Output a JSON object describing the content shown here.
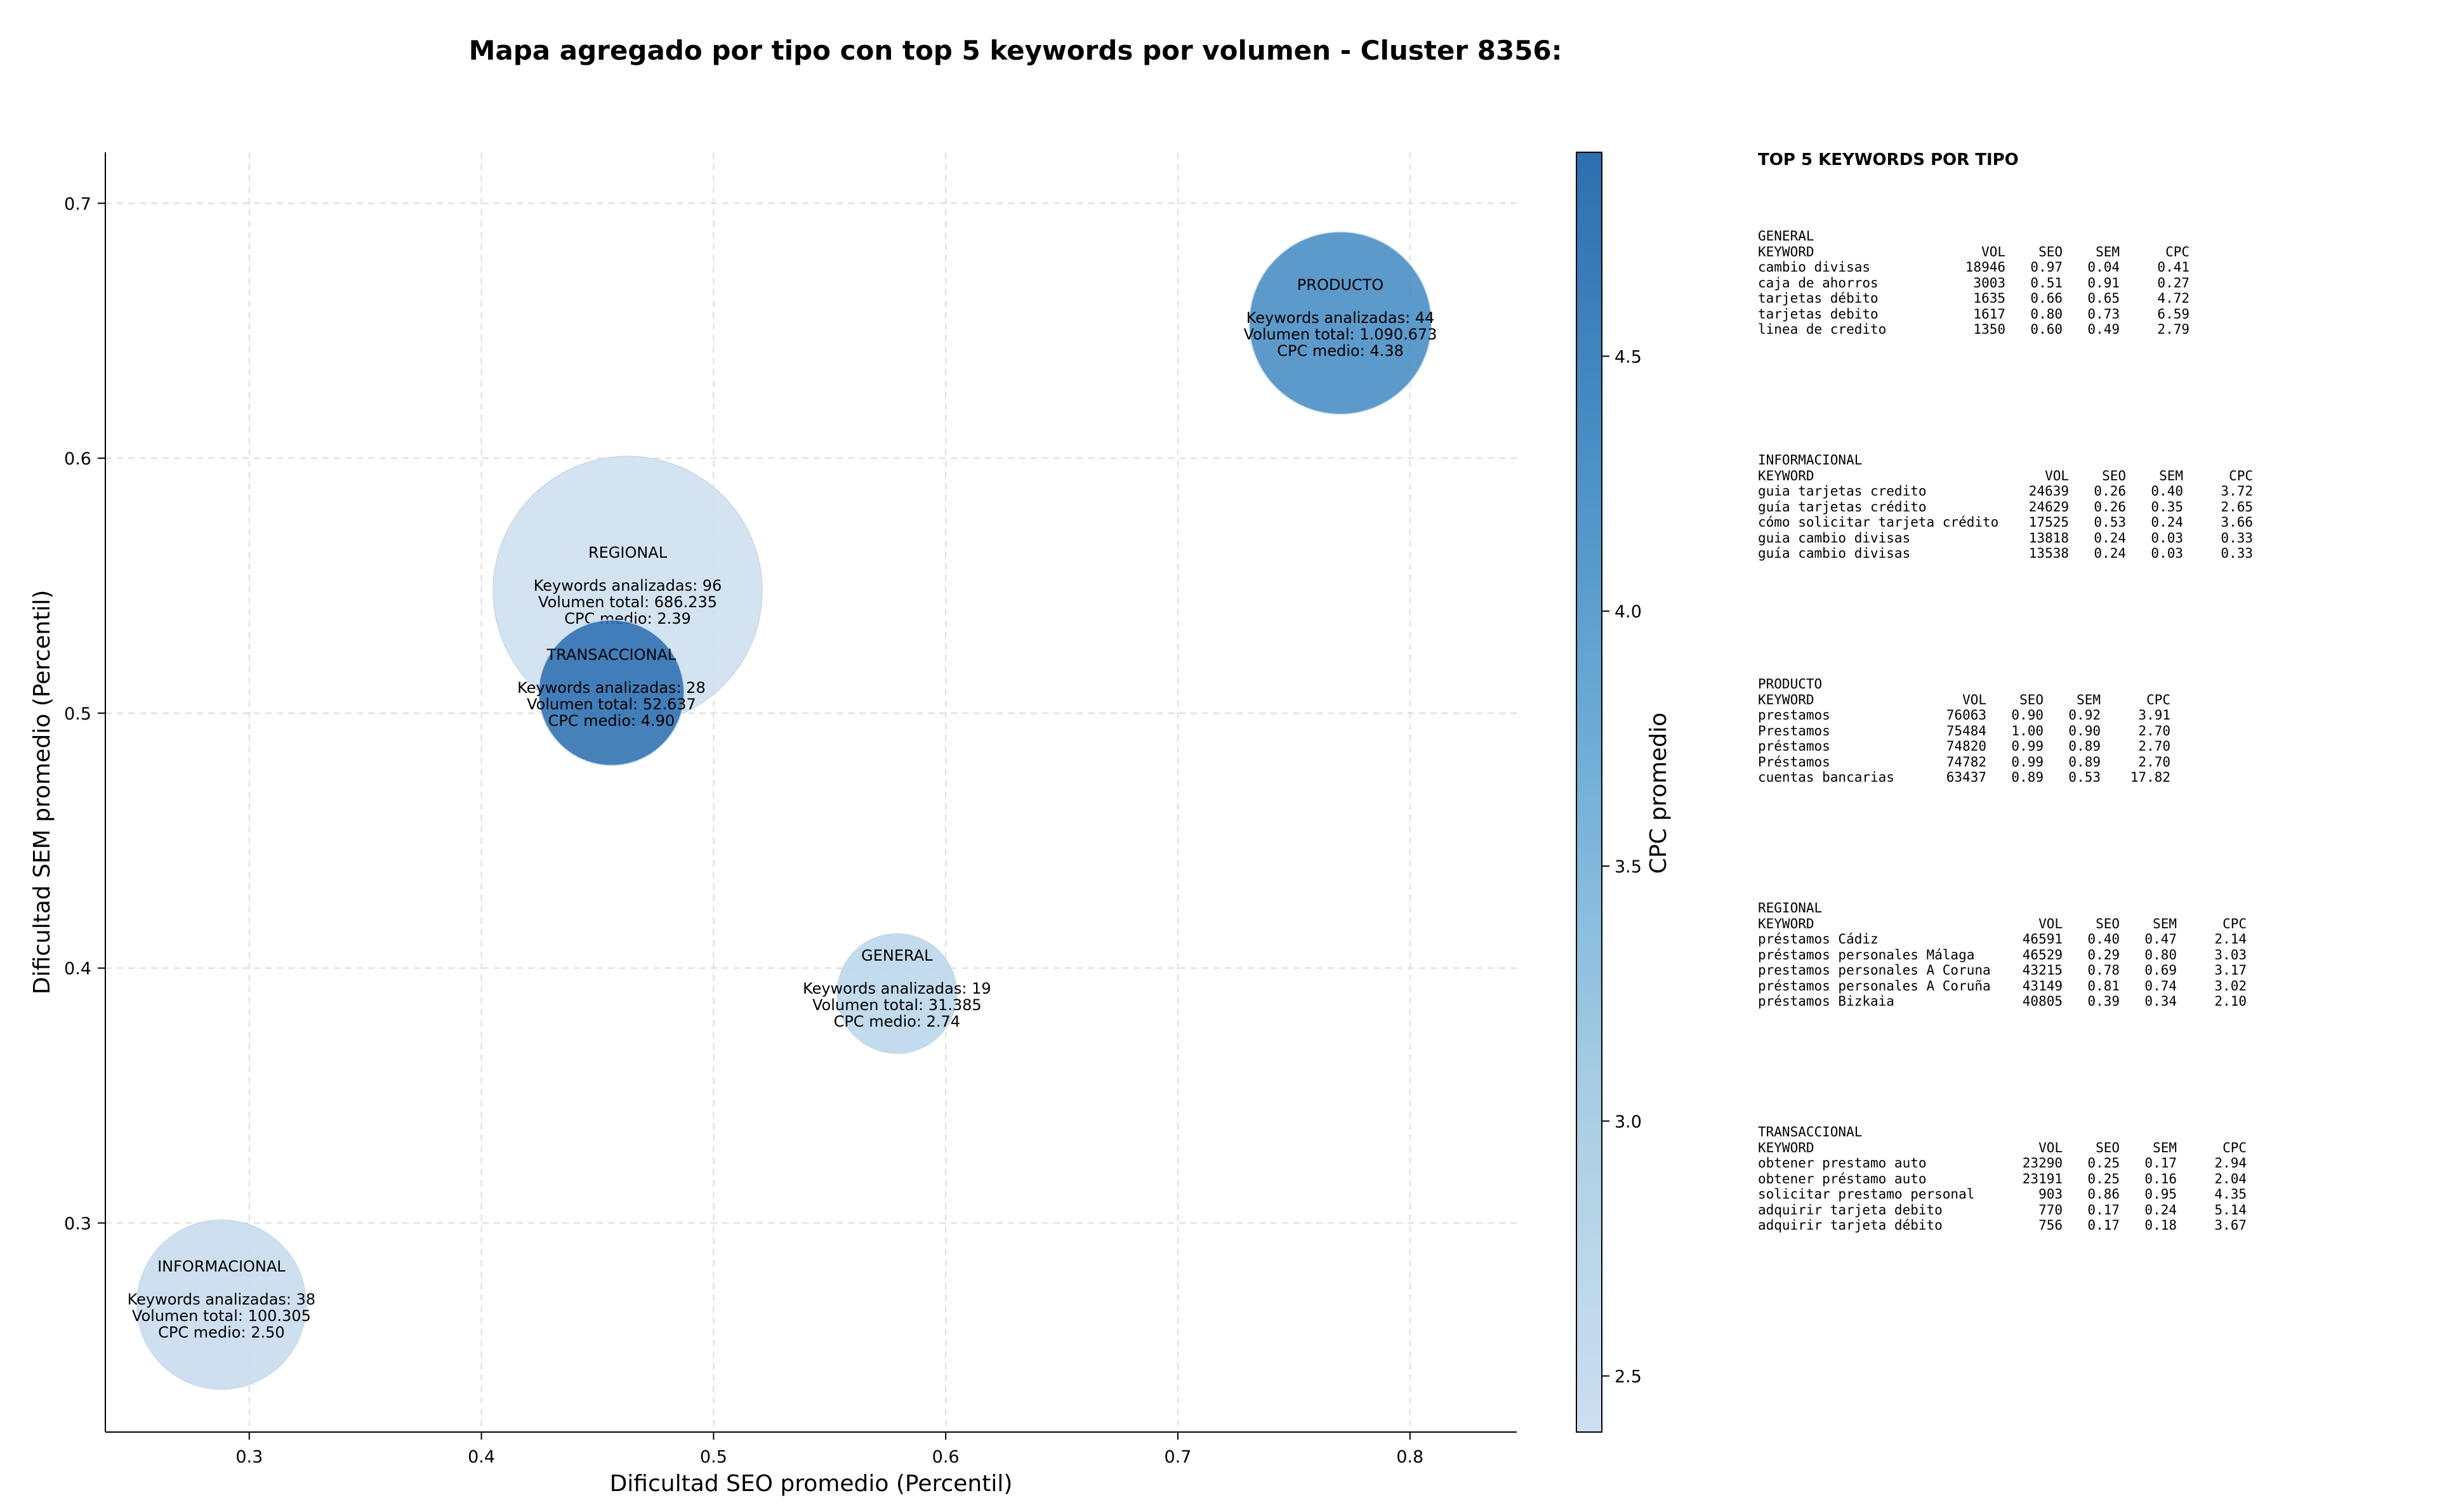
{
  "chart_data": {
    "type": "scatter",
    "title": "Mapa agregado por tipo con top 5 keywords por volumen - Cluster 8356:",
    "xlabel": "Dificultad SEO promedio (Percentil)",
    "ylabel": "Dificultad SEM promedio (Percentil)",
    "xlim": [
      0.238,
      0.846
    ],
    "ylim": [
      0.218,
      0.72
    ],
    "xticks": [
      "0.3",
      "0.4",
      "0.5",
      "0.6",
      "0.7",
      "0.8"
    ],
    "yticks": [
      "0.3",
      "0.4",
      "0.5",
      "0.6",
      "0.7"
    ],
    "grid": true,
    "colorbar": {
      "label": "CPC promedio",
      "min": 2.39,
      "max": 4.9,
      "ticks": [
        "2.5",
        "3.0",
        "3.5",
        "4.0",
        "4.5"
      ]
    },
    "points": [
      {
        "name": "REGIONAL",
        "x": 0.463,
        "y": 0.548,
        "cpc": 2.39,
        "keywords": "Keywords analizadas: 96",
        "volume": "Volumen total: 686.235",
        "cpc_label": "CPC medio: 2.39"
      },
      {
        "name": "PRODUCTO",
        "x": 0.77,
        "y": 0.653,
        "cpc": 4.38,
        "keywords": "Keywords analizadas: 44",
        "volume": "Volumen total: 1.090.673",
        "cpc_label": "CPC medio: 4.38"
      },
      {
        "name": "GENERAL",
        "x": 0.579,
        "y": 0.39,
        "cpc": 2.74,
        "keywords": "Keywords analizadas: 19",
        "volume": "Volumen total: 31.385",
        "cpc_label": "CPC medio: 2.74"
      },
      {
        "name": "INFORMACIONAL",
        "x": 0.288,
        "y": 0.268,
        "cpc": 2.5,
        "keywords": "Keywords analizadas: 38",
        "volume": "Volumen total: 100.305",
        "cpc_label": "CPC medio: 2.50"
      },
      {
        "name": "TRANSACCIONAL",
        "x": 0.456,
        "y": 0.508,
        "cpc": 4.9,
        "keywords": "Keywords analizadas: 28",
        "volume": "Volumen total: 52.637",
        "cpc_label": "CPC medio: 4.90"
      }
    ]
  },
  "panel": {
    "title": "TOP 5 KEYWORDS POR TIPO",
    "headers": [
      "KEYWORD",
      "VOL",
      "SEO",
      "SEM",
      "CPC"
    ],
    "groups": [
      {
        "name": "GENERAL",
        "rows": [
          [
            "cambio divisas",
            "18946",
            "0.97",
            "0.04",
            "0.41"
          ],
          [
            "caja de ahorros",
            "3003",
            "0.51",
            "0.91",
            "0.27"
          ],
          [
            "tarjetas débito",
            "1635",
            "0.66",
            "0.65",
            "4.72"
          ],
          [
            "tarjetas debito",
            "1617",
            "0.80",
            "0.73",
            "6.59"
          ],
          [
            "linea de credito",
            "1350",
            "0.60",
            "0.49",
            "2.79"
          ]
        ]
      },
      {
        "name": "INFORMACIONAL",
        "rows": [
          [
            "guia tarjetas credito",
            "24639",
            "0.26",
            "0.40",
            "3.72"
          ],
          [
            "guía tarjetas crédito",
            "24629",
            "0.26",
            "0.35",
            "2.65"
          ],
          [
            "cómo solicitar tarjeta crédito",
            "17525",
            "0.53",
            "0.24",
            "3.66"
          ],
          [
            "guia cambio divisas",
            "13818",
            "0.24",
            "0.03",
            "0.33"
          ],
          [
            "guía cambio divisas",
            "13538",
            "0.24",
            "0.03",
            "0.33"
          ]
        ]
      },
      {
        "name": "PRODUCTO",
        "rows": [
          [
            "prestamos",
            "76063",
            "0.90",
            "0.92",
            "3.91"
          ],
          [
            "Prestamos",
            "75484",
            "1.00",
            "0.90",
            "2.70"
          ],
          [
            "préstamos",
            "74820",
            "0.99",
            "0.89",
            "2.70"
          ],
          [
            "Préstamos",
            "74782",
            "0.99",
            "0.89",
            "2.70"
          ],
          [
            "cuentas bancarias",
            "63437",
            "0.89",
            "0.53",
            "17.82"
          ]
        ]
      },
      {
        "name": "REGIONAL",
        "rows": [
          [
            "préstamos Cádiz",
            "46591",
            "0.40",
            "0.47",
            "2.14"
          ],
          [
            "préstamos personales Málaga",
            "46529",
            "0.29",
            "0.80",
            "3.03"
          ],
          [
            "prestamos personales A Coruna",
            "43215",
            "0.78",
            "0.69",
            "3.17"
          ],
          [
            "préstamos personales A Coruña",
            "43149",
            "0.81",
            "0.74",
            "3.02"
          ],
          [
            "préstamos Bizkaia",
            "40805",
            "0.39",
            "0.34",
            "2.10"
          ]
        ]
      },
      {
        "name": "TRANSACCIONAL",
        "rows": [
          [
            "obtener prestamo auto",
            "23290",
            "0.25",
            "0.17",
            "2.94"
          ],
          [
            "obtener préstamo auto",
            "23191",
            "0.25",
            "0.16",
            "2.04"
          ],
          [
            "solicitar prestamo personal",
            "903",
            "0.86",
            "0.95",
            "4.35"
          ],
          [
            "adquirir tarjeta debito",
            "770",
            "0.17",
            "0.24",
            "5.14"
          ],
          [
            "adquirir tarjeta débito",
            "756",
            "0.17",
            "0.18",
            "3.67"
          ]
        ]
      }
    ]
  }
}
